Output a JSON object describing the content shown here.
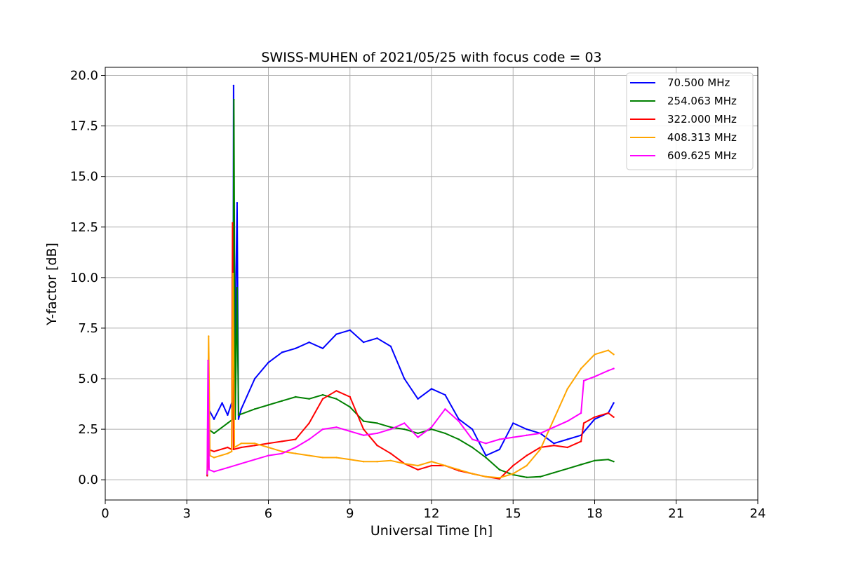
{
  "chart_data": {
    "type": "line",
    "title": "SWISS-MUHEN of 2021/05/25 with focus code = 03",
    "xlabel": "Universal Time [h]",
    "ylabel": "Y-factor [dB]",
    "xlim": [
      0,
      24
    ],
    "ylim": [
      -1.0,
      20.4
    ],
    "xticks": [
      0,
      3,
      6,
      9,
      12,
      15,
      18,
      21,
      24
    ],
    "xtick_labels": [
      "0",
      "3",
      "6",
      "9",
      "12",
      "15",
      "18",
      "21",
      "24"
    ],
    "yticks": [
      0.0,
      2.5,
      5.0,
      7.5,
      10.0,
      12.5,
      15.0,
      17.5,
      20.0
    ],
    "ytick_labels": [
      "0.0",
      "2.5",
      "5.0",
      "7.5",
      "10.0",
      "12.5",
      "15.0",
      "17.5",
      "20.0"
    ],
    "grid": true,
    "legend_position": "top-right",
    "series": [
      {
        "name": "  70.500 MHz",
        "color": "#0000ff",
        "points": [
          [
            3.75,
            0.2
          ],
          [
            3.8,
            3.5
          ],
          [
            4.0,
            3.0
          ],
          [
            4.3,
            3.8
          ],
          [
            4.5,
            3.2
          ],
          [
            4.7,
            4.0
          ],
          [
            4.72,
            19.5
          ],
          [
            4.75,
            4.0
          ],
          [
            4.85,
            13.7
          ],
          [
            4.9,
            3.0
          ],
          [
            5.0,
            3.5
          ],
          [
            5.5,
            5.0
          ],
          [
            6.0,
            5.8
          ],
          [
            6.5,
            6.3
          ],
          [
            7.0,
            6.5
          ],
          [
            7.5,
            6.8
          ],
          [
            8.0,
            6.5
          ],
          [
            8.5,
            7.2
          ],
          [
            9.0,
            7.4
          ],
          [
            9.5,
            6.8
          ],
          [
            10.0,
            7.0
          ],
          [
            10.5,
            6.6
          ],
          [
            11.0,
            5.0
          ],
          [
            11.5,
            4.0
          ],
          [
            12.0,
            4.5
          ],
          [
            12.5,
            4.2
          ],
          [
            13.0,
            3.0
          ],
          [
            13.5,
            2.5
          ],
          [
            14.0,
            1.2
          ],
          [
            14.5,
            1.5
          ],
          [
            15.0,
            2.8
          ],
          [
            15.5,
            2.5
          ],
          [
            16.0,
            2.3
          ],
          [
            16.5,
            1.8
          ],
          [
            17.0,
            2.0
          ],
          [
            17.5,
            2.2
          ],
          [
            18.0,
            3.0
          ],
          [
            18.5,
            3.3
          ],
          [
            18.7,
            3.8
          ]
        ]
      },
      {
        "name": "254.063 MHz",
        "color": "#008000",
        "points": [
          [
            3.75,
            0.3
          ],
          [
            3.8,
            2.5
          ],
          [
            4.0,
            2.3
          ],
          [
            4.5,
            2.8
          ],
          [
            4.7,
            3.0
          ],
          [
            4.73,
            18.8
          ],
          [
            4.78,
            3.0
          ],
          [
            4.85,
            9.5
          ],
          [
            4.9,
            3.2
          ],
          [
            5.5,
            3.5
          ],
          [
            6.0,
            3.7
          ],
          [
            6.5,
            3.9
          ],
          [
            7.0,
            4.1
          ],
          [
            7.5,
            4.0
          ],
          [
            8.0,
            4.2
          ],
          [
            8.5,
            4.0
          ],
          [
            9.0,
            3.6
          ],
          [
            9.5,
            2.9
          ],
          [
            10.0,
            2.8
          ],
          [
            10.5,
            2.6
          ],
          [
            11.0,
            2.5
          ],
          [
            11.5,
            2.3
          ],
          [
            12.0,
            2.5
          ],
          [
            12.5,
            2.3
          ],
          [
            13.0,
            2.0
          ],
          [
            13.5,
            1.6
          ],
          [
            14.0,
            1.1
          ],
          [
            14.5,
            0.5
          ],
          [
            15.0,
            0.25
          ],
          [
            15.5,
            0.12
          ],
          [
            16.0,
            0.15
          ],
          [
            16.5,
            0.35
          ],
          [
            17.0,
            0.55
          ],
          [
            17.5,
            0.75
          ],
          [
            18.0,
            0.95
          ],
          [
            18.5,
            1.0
          ],
          [
            18.7,
            0.9
          ]
        ]
      },
      {
        "name": "322.000 MHz",
        "color": "#ff0000",
        "points": [
          [
            3.75,
            0.2
          ],
          [
            3.8,
            1.5
          ],
          [
            4.0,
            1.4
          ],
          [
            4.5,
            1.6
          ],
          [
            4.65,
            1.5
          ],
          [
            4.68,
            12.7
          ],
          [
            4.72,
            1.5
          ],
          [
            5.0,
            1.6
          ],
          [
            5.5,
            1.7
          ],
          [
            6.0,
            1.8
          ],
          [
            6.5,
            1.9
          ],
          [
            7.0,
            2.0
          ],
          [
            7.5,
            2.8
          ],
          [
            8.0,
            4.0
          ],
          [
            8.5,
            4.4
          ],
          [
            9.0,
            4.1
          ],
          [
            9.5,
            2.5
          ],
          [
            10.0,
            1.7
          ],
          [
            10.5,
            1.3
          ],
          [
            11.0,
            0.8
          ],
          [
            11.5,
            0.5
          ],
          [
            12.0,
            0.7
          ],
          [
            12.5,
            0.7
          ],
          [
            13.0,
            0.45
          ],
          [
            13.5,
            0.3
          ],
          [
            14.0,
            0.15
          ],
          [
            14.5,
            0.05
          ],
          [
            15.0,
            0.7
          ],
          [
            15.5,
            1.2
          ],
          [
            16.0,
            1.6
          ],
          [
            16.5,
            1.7
          ],
          [
            17.0,
            1.6
          ],
          [
            17.5,
            1.9
          ],
          [
            17.6,
            2.8
          ],
          [
            18.0,
            3.1
          ],
          [
            18.5,
            3.3
          ],
          [
            18.7,
            3.1
          ]
        ]
      },
      {
        "name": "408.313 MHz",
        "color": "#ffa500",
        "points": [
          [
            3.75,
            0.3
          ],
          [
            3.8,
            7.1
          ],
          [
            3.85,
            1.2
          ],
          [
            4.0,
            1.1
          ],
          [
            4.5,
            1.3
          ],
          [
            4.65,
            1.4
          ],
          [
            4.7,
            10.2
          ],
          [
            4.75,
            1.6
          ],
          [
            5.0,
            1.8
          ],
          [
            5.5,
            1.8
          ],
          [
            6.0,
            1.6
          ],
          [
            6.5,
            1.4
          ],
          [
            7.0,
            1.3
          ],
          [
            7.5,
            1.2
          ],
          [
            8.0,
            1.1
          ],
          [
            8.5,
            1.1
          ],
          [
            9.0,
            1.0
          ],
          [
            9.5,
            0.9
          ],
          [
            10.0,
            0.9
          ],
          [
            10.5,
            0.95
          ],
          [
            11.0,
            0.8
          ],
          [
            11.5,
            0.7
          ],
          [
            12.0,
            0.9
          ],
          [
            12.5,
            0.7
          ],
          [
            13.0,
            0.5
          ],
          [
            13.5,
            0.3
          ],
          [
            14.0,
            0.15
          ],
          [
            14.5,
            0.1
          ],
          [
            15.0,
            0.3
          ],
          [
            15.5,
            0.7
          ],
          [
            16.0,
            1.5
          ],
          [
            16.5,
            3.0
          ],
          [
            17.0,
            4.5
          ],
          [
            17.5,
            5.5
          ],
          [
            18.0,
            6.2
          ],
          [
            18.5,
            6.4
          ],
          [
            18.7,
            6.2
          ]
        ]
      },
      {
        "name": "609.625 MHz",
        "color": "#ff00ff",
        "points": [
          [
            3.75,
            0.3
          ],
          [
            3.78,
            5.9
          ],
          [
            3.82,
            0.5
          ],
          [
            4.0,
            0.4
          ],
          [
            4.5,
            0.6
          ],
          [
            5.0,
            0.8
          ],
          [
            5.5,
            1.0
          ],
          [
            6.0,
            1.2
          ],
          [
            6.5,
            1.3
          ],
          [
            7.0,
            1.6
          ],
          [
            7.5,
            2.0
          ],
          [
            8.0,
            2.5
          ],
          [
            8.5,
            2.6
          ],
          [
            9.0,
            2.4
          ],
          [
            9.5,
            2.2
          ],
          [
            10.0,
            2.3
          ],
          [
            10.5,
            2.5
          ],
          [
            11.0,
            2.8
          ],
          [
            11.5,
            2.1
          ],
          [
            12.0,
            2.6
          ],
          [
            12.5,
            3.5
          ],
          [
            13.0,
            2.9
          ],
          [
            13.5,
            2.0
          ],
          [
            14.0,
            1.8
          ],
          [
            14.5,
            2.0
          ],
          [
            15.0,
            2.1
          ],
          [
            15.5,
            2.2
          ],
          [
            16.0,
            2.3
          ],
          [
            16.5,
            2.6
          ],
          [
            17.0,
            2.9
          ],
          [
            17.5,
            3.3
          ],
          [
            17.6,
            4.9
          ],
          [
            18.0,
            5.1
          ],
          [
            18.5,
            5.4
          ],
          [
            18.7,
            5.5
          ]
        ]
      }
    ]
  }
}
